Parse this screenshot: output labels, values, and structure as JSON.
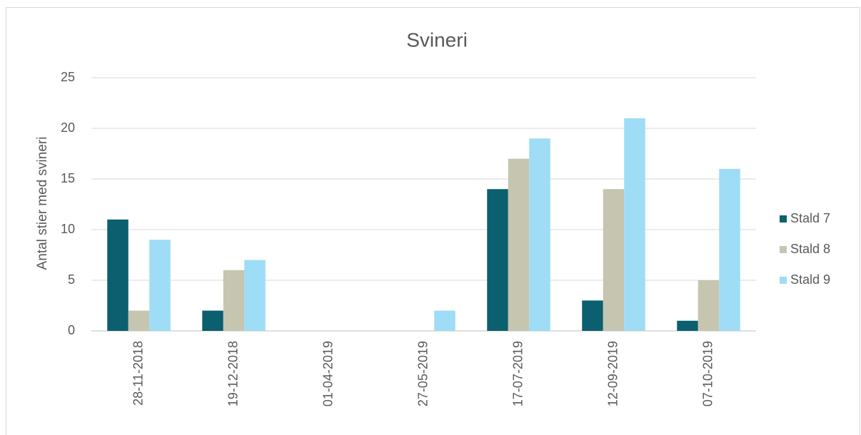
{
  "chart_data": {
    "type": "bar",
    "title": "Svineri",
    "y_label": "Antal stier med svineri",
    "categories": [
      "28-11-2018",
      "19-12-2018",
      "01-04-2019",
      "27-05-2019",
      "17-07-2019",
      "12-09-2019",
      "07-10-2019"
    ],
    "series": [
      {
        "name": "Stald 7",
        "color": "#0b5f6e",
        "values": [
          11,
          2,
          0,
          0,
          14,
          3,
          1
        ]
      },
      {
        "name": "Stald 8",
        "color": "#c6c5b0",
        "values": [
          2,
          6,
          0,
          0,
          17,
          14,
          5
        ]
      },
      {
        "name": "Stald 9",
        "color": "#9fdcf5",
        "values": [
          9,
          7,
          0,
          2,
          19,
          21,
          16
        ]
      }
    ],
    "ylim": [
      0,
      25
    ],
    "yticks": [
      0,
      5,
      10,
      15,
      20,
      25
    ],
    "grid": true,
    "legend": "right"
  }
}
